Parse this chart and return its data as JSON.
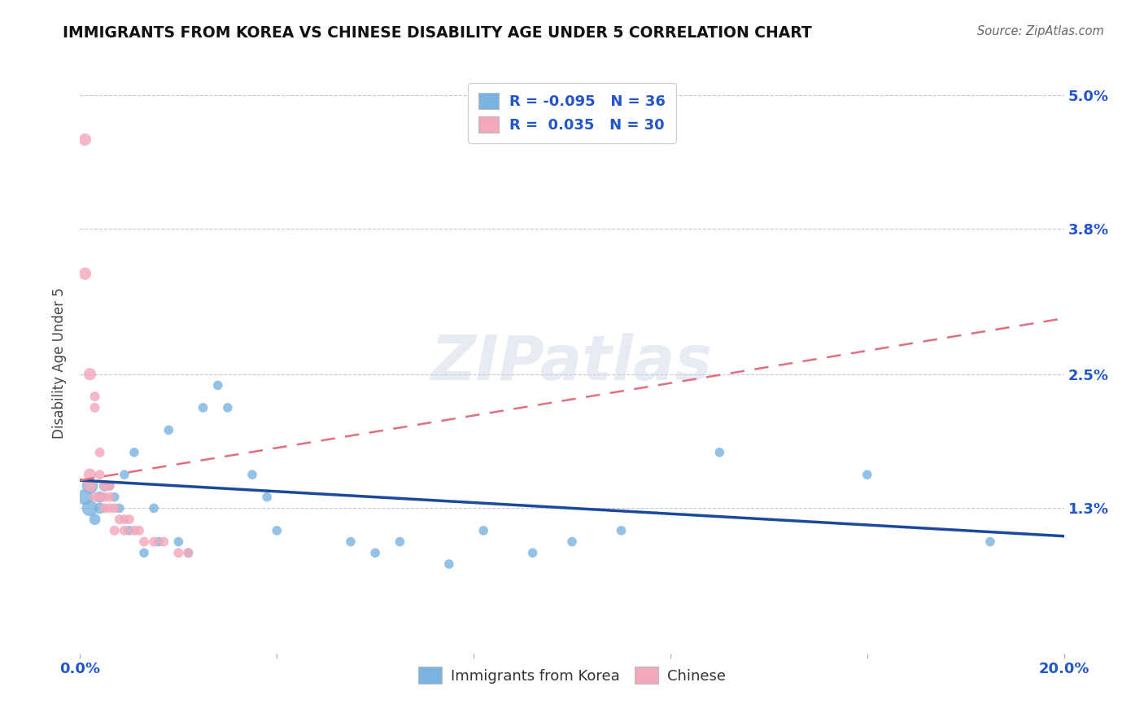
{
  "title": "IMMIGRANTS FROM KOREA VS CHINESE DISABILITY AGE UNDER 5 CORRELATION CHART",
  "source": "Source: ZipAtlas.com",
  "ylabel": "Disability Age Under 5",
  "xlim": [
    0.0,
    0.2
  ],
  "ylim": [
    0.0,
    0.052
  ],
  "right_ytick_labels": [
    "1.3%",
    "2.5%",
    "3.8%",
    "5.0%"
  ],
  "right_ytick_vals": [
    0.013,
    0.025,
    0.038,
    0.05
  ],
  "legend_entry_blue": "R = -0.095   N = 36",
  "legend_entry_pink": "R =  0.035   N = 30",
  "korea_x": [
    0.001,
    0.002,
    0.002,
    0.003,
    0.004,
    0.004,
    0.005,
    0.006,
    0.007,
    0.008,
    0.009,
    0.01,
    0.011,
    0.013,
    0.015,
    0.016,
    0.018,
    0.02,
    0.022,
    0.025,
    0.028,
    0.03,
    0.035,
    0.038,
    0.04,
    0.055,
    0.06,
    0.065,
    0.075,
    0.082,
    0.092,
    0.1,
    0.11,
    0.13,
    0.16,
    0.185
  ],
  "korea_y": [
    0.014,
    0.013,
    0.015,
    0.012,
    0.014,
    0.013,
    0.015,
    0.015,
    0.014,
    0.013,
    0.016,
    0.011,
    0.018,
    0.009,
    0.013,
    0.01,
    0.02,
    0.01,
    0.009,
    0.022,
    0.024,
    0.022,
    0.016,
    0.014,
    0.011,
    0.01,
    0.009,
    0.01,
    0.008,
    0.011,
    0.009,
    0.01,
    0.011,
    0.018,
    0.016,
    0.01
  ],
  "chinese_x": [
    0.001,
    0.001,
    0.002,
    0.002,
    0.002,
    0.003,
    0.003,
    0.003,
    0.004,
    0.004,
    0.004,
    0.005,
    0.005,
    0.005,
    0.006,
    0.006,
    0.006,
    0.007,
    0.007,
    0.008,
    0.009,
    0.009,
    0.01,
    0.011,
    0.012,
    0.013,
    0.015,
    0.017,
    0.02,
    0.022
  ],
  "chinese_y": [
    0.046,
    0.034,
    0.015,
    0.016,
    0.025,
    0.014,
    0.022,
    0.023,
    0.014,
    0.016,
    0.018,
    0.013,
    0.015,
    0.014,
    0.013,
    0.015,
    0.014,
    0.013,
    0.011,
    0.012,
    0.011,
    0.012,
    0.012,
    0.011,
    0.011,
    0.01,
    0.01,
    0.01,
    0.009,
    0.009
  ],
  "korea_color": "#7ab3e0",
  "chinese_color": "#f4a8bc",
  "korea_line_color": "#1a4a9e",
  "chinese_line_color": "#e07080",
  "korea_line_start_y": 0.0155,
  "korea_line_end_y": 0.0105,
  "chinese_line_start_y": 0.0155,
  "chinese_line_end_y": 0.03,
  "watermark": "ZIPatlas",
  "background_color": "#ffffff",
  "grid_color": "#c8c8c8"
}
